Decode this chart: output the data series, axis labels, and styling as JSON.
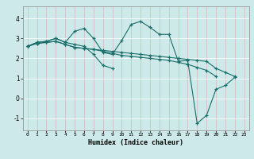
{
  "xlabel": "Humidex (Indice chaleur)",
  "xlim": [
    -0.5,
    23.5
  ],
  "ylim": [
    -1.6,
    4.6
  ],
  "yticks": [
    -1,
    0,
    1,
    2,
    3,
    4
  ],
  "xticks": [
    0,
    1,
    2,
    3,
    4,
    5,
    6,
    7,
    8,
    9,
    10,
    11,
    12,
    13,
    14,
    15,
    16,
    17,
    18,
    19,
    20,
    21,
    22,
    23
  ],
  "bg_color": "#cee9e9",
  "grid_color": "#e8c8c8",
  "line_color": "#1a6e6a",
  "lines": [
    {
      "x": [
        0,
        1,
        2,
        3,
        4,
        5,
        6,
        7,
        8,
        9,
        10,
        11,
        12,
        13,
        14,
        15,
        16,
        17,
        18,
        19,
        20,
        21,
        22
      ],
      "y": [
        2.6,
        2.8,
        2.85,
        3.0,
        2.8,
        3.35,
        3.5,
        3.0,
        2.3,
        2.2,
        2.9,
        3.7,
        3.85,
        3.55,
        3.2,
        3.2,
        1.85,
        1.9,
        -1.25,
        -0.85,
        0.45,
        0.65,
        1.05
      ]
    },
    {
      "x": [
        0,
        1,
        2,
        3,
        4,
        5,
        6,
        7,
        8,
        9,
        10,
        11,
        12,
        13,
        14,
        15,
        16,
        17,
        18,
        19,
        20,
        21,
        22
      ],
      "y": [
        2.6,
        2.75,
        2.8,
        2.85,
        2.7,
        2.55,
        2.5,
        2.45,
        2.4,
        2.35,
        2.3,
        2.25,
        2.2,
        2.15,
        2.1,
        2.05,
        2.0,
        1.95,
        1.9,
        1.85,
        1.5,
        1.3,
        1.1
      ]
    },
    {
      "x": [
        0,
        1,
        2,
        3,
        4,
        5,
        6,
        7,
        8,
        9
      ],
      "y": [
        2.6,
        2.8,
        2.85,
        3.0,
        2.8,
        2.7,
        2.6,
        2.2,
        1.65,
        1.5
      ]
    },
    {
      "x": [
        0,
        1,
        2,
        3,
        4,
        5,
        6,
        7,
        8,
        9,
        10,
        11,
        12,
        13,
        14,
        15,
        16,
        17,
        18,
        19,
        20
      ],
      "y": [
        2.6,
        2.75,
        2.8,
        2.85,
        2.7,
        2.55,
        2.5,
        2.45,
        2.35,
        2.25,
        2.15,
        2.1,
        2.05,
        2.0,
        1.95,
        1.9,
        1.8,
        1.7,
        1.55,
        1.4,
        1.1
      ]
    }
  ]
}
